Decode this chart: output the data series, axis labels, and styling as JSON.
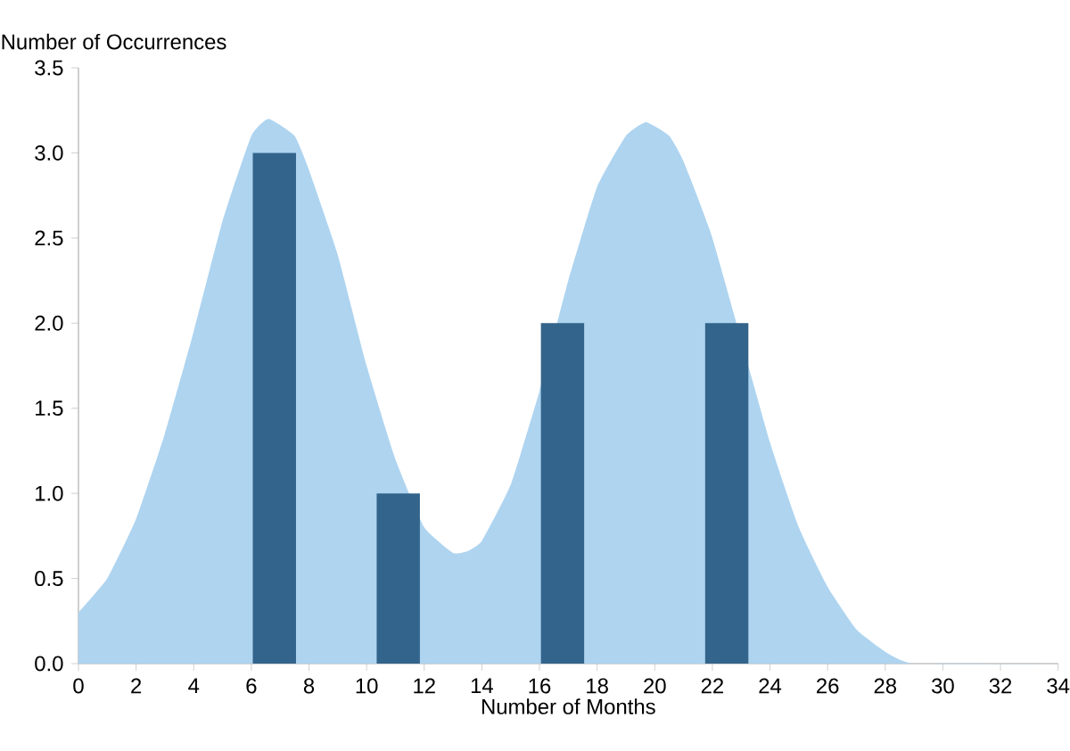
{
  "chart_data": {
    "type": "bar",
    "xlabel": "Number of Months",
    "ylabel": "Number of Occurrences",
    "xlim": [
      0,
      34
    ],
    "ylim": [
      0,
      3.5
    ],
    "xticks": [
      0,
      2,
      4,
      6,
      8,
      10,
      12,
      14,
      16,
      18,
      20,
      22,
      24,
      26,
      28,
      30,
      32,
      34
    ],
    "yticks": [
      {
        "value": 0,
        "label": "0.0"
      },
      {
        "value": 0.5,
        "label": "0.5"
      },
      {
        "value": 1,
        "label": "1.0"
      },
      {
        "value": 1.5,
        "label": "1.5"
      },
      {
        "value": 2,
        "label": "2.0"
      },
      {
        "value": 2.5,
        "label": "2.5"
      },
      {
        "value": 3,
        "label": "3.0"
      },
      {
        "value": 3.5,
        "label": "3.5"
      }
    ],
    "series": [
      {
        "type": "area",
        "color": "#aed4f0",
        "x": [
          0,
          1,
          2,
          3,
          4,
          5,
          6,
          6.6,
          7.5,
          8,
          9,
          10,
          11,
          12,
          13,
          13.5,
          14,
          15,
          16,
          17,
          18,
          19,
          19.7,
          20.5,
          21,
          22,
          23,
          24,
          25,
          26,
          27,
          28,
          29,
          34
        ],
        "values": [
          0.3,
          0.5,
          0.85,
          1.35,
          1.95,
          2.6,
          3.1,
          3.2,
          3.1,
          2.9,
          2.4,
          1.75,
          1.2,
          0.8,
          0.65,
          0.66,
          0.72,
          1.05,
          1.6,
          2.25,
          2.8,
          3.1,
          3.18,
          3.1,
          2.95,
          2.5,
          null,
          1.3,
          0.8,
          0.45,
          0.2,
          0.07,
          0,
          0
        ]
      },
      {
        "color": "#33648b",
        "x": [
          6.8,
          11.1,
          16.8,
          22.5
        ],
        "values": [
          3,
          1,
          2,
          2
        ]
      }
    ]
  }
}
